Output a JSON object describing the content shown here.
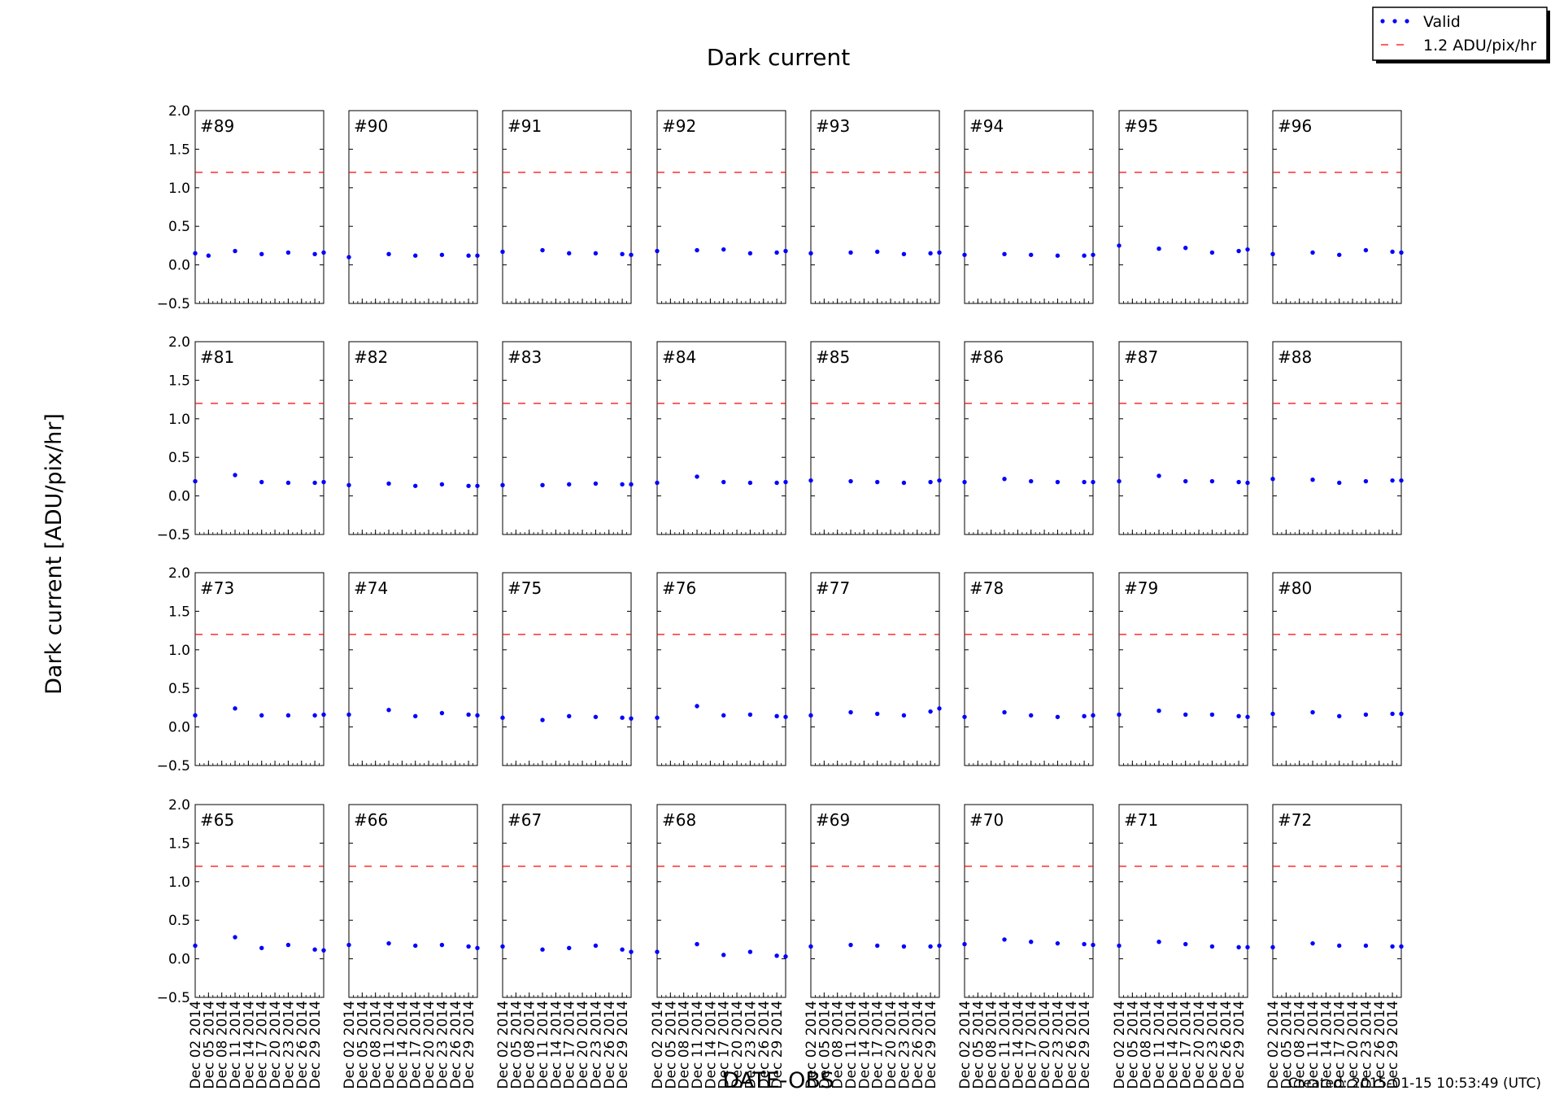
{
  "title": "Dark current",
  "ylabel": "Dark current [ADU/pix/hr]",
  "xlabel": "DATE-OBS",
  "footer": "Created: 2015-01-15 10:53:49 (UTC)",
  "legend": {
    "position": "top-right",
    "entries": [
      {
        "label": "Valid",
        "marker": "dots",
        "color": "#0000ff"
      },
      {
        "label": "1.2 ADU/pix/hr",
        "marker": "dashed-line",
        "color": "#ff0000"
      }
    ]
  },
  "colors": {
    "points": "#0000ff",
    "threshold": "#ff0000",
    "axes": "#000000"
  },
  "chart_data": {
    "type": "scatter",
    "layout": "small-multiples 4 rows x 8 columns",
    "ylim": [
      -0.5,
      2.0
    ],
    "yticks": [
      -0.5,
      0.0,
      0.5,
      1.0,
      1.5,
      2.0
    ],
    "ytick_labels": [
      "−0.5",
      "0.0",
      "0.5",
      "1.0",
      "1.5",
      "2.0"
    ],
    "xlim": [
      "2014-12-02",
      "2014-12-31"
    ],
    "xtick_labels": [
      "Dec 02 2014",
      "Dec 05 2014",
      "Dec 08 2014",
      "Dec 11 2014",
      "Dec 14 2014",
      "Dec 17 2014",
      "Dec 20 2014",
      "Dec 23 2014",
      "Dec 26 2014",
      "Dec 29 2014"
    ],
    "x": [
      "2014-12-02",
      "2014-12-05",
      "2014-12-11",
      "2014-12-17",
      "2014-12-23",
      "2014-12-29",
      "2014-12-31"
    ],
    "threshold": 1.2,
    "grid": false,
    "panels": [
      {
        "label": "#89",
        "values": [
          0.15,
          0.12,
          0.18,
          0.14,
          0.16,
          0.14,
          0.16
        ]
      },
      {
        "label": "#90",
        "values": [
          0.1,
          null,
          0.14,
          0.12,
          0.13,
          0.12,
          0.12
        ]
      },
      {
        "label": "#91",
        "values": [
          0.17,
          null,
          0.19,
          0.15,
          0.15,
          0.14,
          0.13
        ]
      },
      {
        "label": "#92",
        "values": [
          0.18,
          null,
          0.19,
          0.2,
          0.15,
          0.16,
          0.18
        ]
      },
      {
        "label": "#93",
        "values": [
          0.15,
          null,
          0.16,
          0.17,
          0.14,
          0.15,
          0.16
        ]
      },
      {
        "label": "#94",
        "values": [
          0.13,
          null,
          0.14,
          0.13,
          0.12,
          0.12,
          0.13
        ]
      },
      {
        "label": "#95",
        "values": [
          0.25,
          null,
          0.21,
          0.22,
          0.16,
          0.18,
          0.2
        ]
      },
      {
        "label": "#96",
        "values": [
          0.14,
          null,
          0.16,
          0.13,
          0.19,
          0.17,
          0.16
        ]
      },
      {
        "label": "#81",
        "values": [
          0.19,
          null,
          0.27,
          0.18,
          0.17,
          0.17,
          0.18
        ]
      },
      {
        "label": "#82",
        "values": [
          0.14,
          null,
          0.16,
          0.13,
          0.15,
          0.13,
          0.13
        ]
      },
      {
        "label": "#83",
        "values": [
          0.14,
          null,
          0.14,
          0.15,
          0.16,
          0.15,
          0.15
        ]
      },
      {
        "label": "#84",
        "values": [
          0.17,
          null,
          0.25,
          0.18,
          0.17,
          0.17,
          0.18
        ]
      },
      {
        "label": "#85",
        "values": [
          0.2,
          null,
          0.19,
          0.18,
          0.17,
          0.18,
          0.2
        ]
      },
      {
        "label": "#86",
        "values": [
          0.18,
          null,
          0.22,
          0.19,
          0.18,
          0.18,
          0.18
        ]
      },
      {
        "label": "#87",
        "values": [
          0.19,
          null,
          0.26,
          0.19,
          0.19,
          0.18,
          0.17
        ]
      },
      {
        "label": "#88",
        "values": [
          0.22,
          null,
          0.21,
          0.17,
          0.19,
          0.2,
          0.2
        ]
      },
      {
        "label": "#73",
        "values": [
          0.15,
          null,
          0.24,
          0.15,
          0.15,
          0.15,
          0.16
        ]
      },
      {
        "label": "#74",
        "values": [
          0.16,
          null,
          0.22,
          0.14,
          0.18,
          0.16,
          0.15
        ]
      },
      {
        "label": "#75",
        "values": [
          0.12,
          null,
          0.09,
          0.14,
          0.13,
          0.12,
          0.11
        ]
      },
      {
        "label": "#76",
        "values": [
          0.12,
          null,
          0.27,
          0.15,
          0.16,
          0.14,
          0.13
        ]
      },
      {
        "label": "#77",
        "values": [
          0.15,
          null,
          0.19,
          0.17,
          0.15,
          0.2,
          0.24
        ]
      },
      {
        "label": "#78",
        "values": [
          0.13,
          null,
          0.19,
          0.15,
          0.13,
          0.14,
          0.15
        ]
      },
      {
        "label": "#79",
        "values": [
          0.16,
          null,
          0.21,
          0.16,
          0.16,
          0.14,
          0.13
        ]
      },
      {
        "label": "#80",
        "values": [
          0.17,
          null,
          0.19,
          0.14,
          0.16,
          0.17,
          0.17
        ]
      },
      {
        "label": "#65",
        "values": [
          0.17,
          null,
          0.28,
          0.14,
          0.18,
          0.12,
          0.11
        ]
      },
      {
        "label": "#66",
        "values": [
          0.18,
          null,
          0.2,
          0.17,
          0.18,
          0.16,
          0.14
        ]
      },
      {
        "label": "#67",
        "values": [
          0.16,
          null,
          0.12,
          0.14,
          0.17,
          0.12,
          0.09
        ]
      },
      {
        "label": "#68",
        "values": [
          0.09,
          null,
          0.19,
          0.05,
          0.09,
          0.04,
          0.03
        ]
      },
      {
        "label": "#69",
        "values": [
          0.16,
          null,
          0.18,
          0.17,
          0.16,
          0.16,
          0.17
        ]
      },
      {
        "label": "#70",
        "values": [
          0.19,
          null,
          0.25,
          0.22,
          0.2,
          0.19,
          0.18
        ]
      },
      {
        "label": "#71",
        "values": [
          0.17,
          null,
          0.22,
          0.19,
          0.16,
          0.15,
          0.15
        ]
      },
      {
        "label": "#72",
        "values": [
          0.15,
          null,
          0.2,
          0.17,
          0.17,
          0.16,
          0.16
        ]
      }
    ]
  }
}
